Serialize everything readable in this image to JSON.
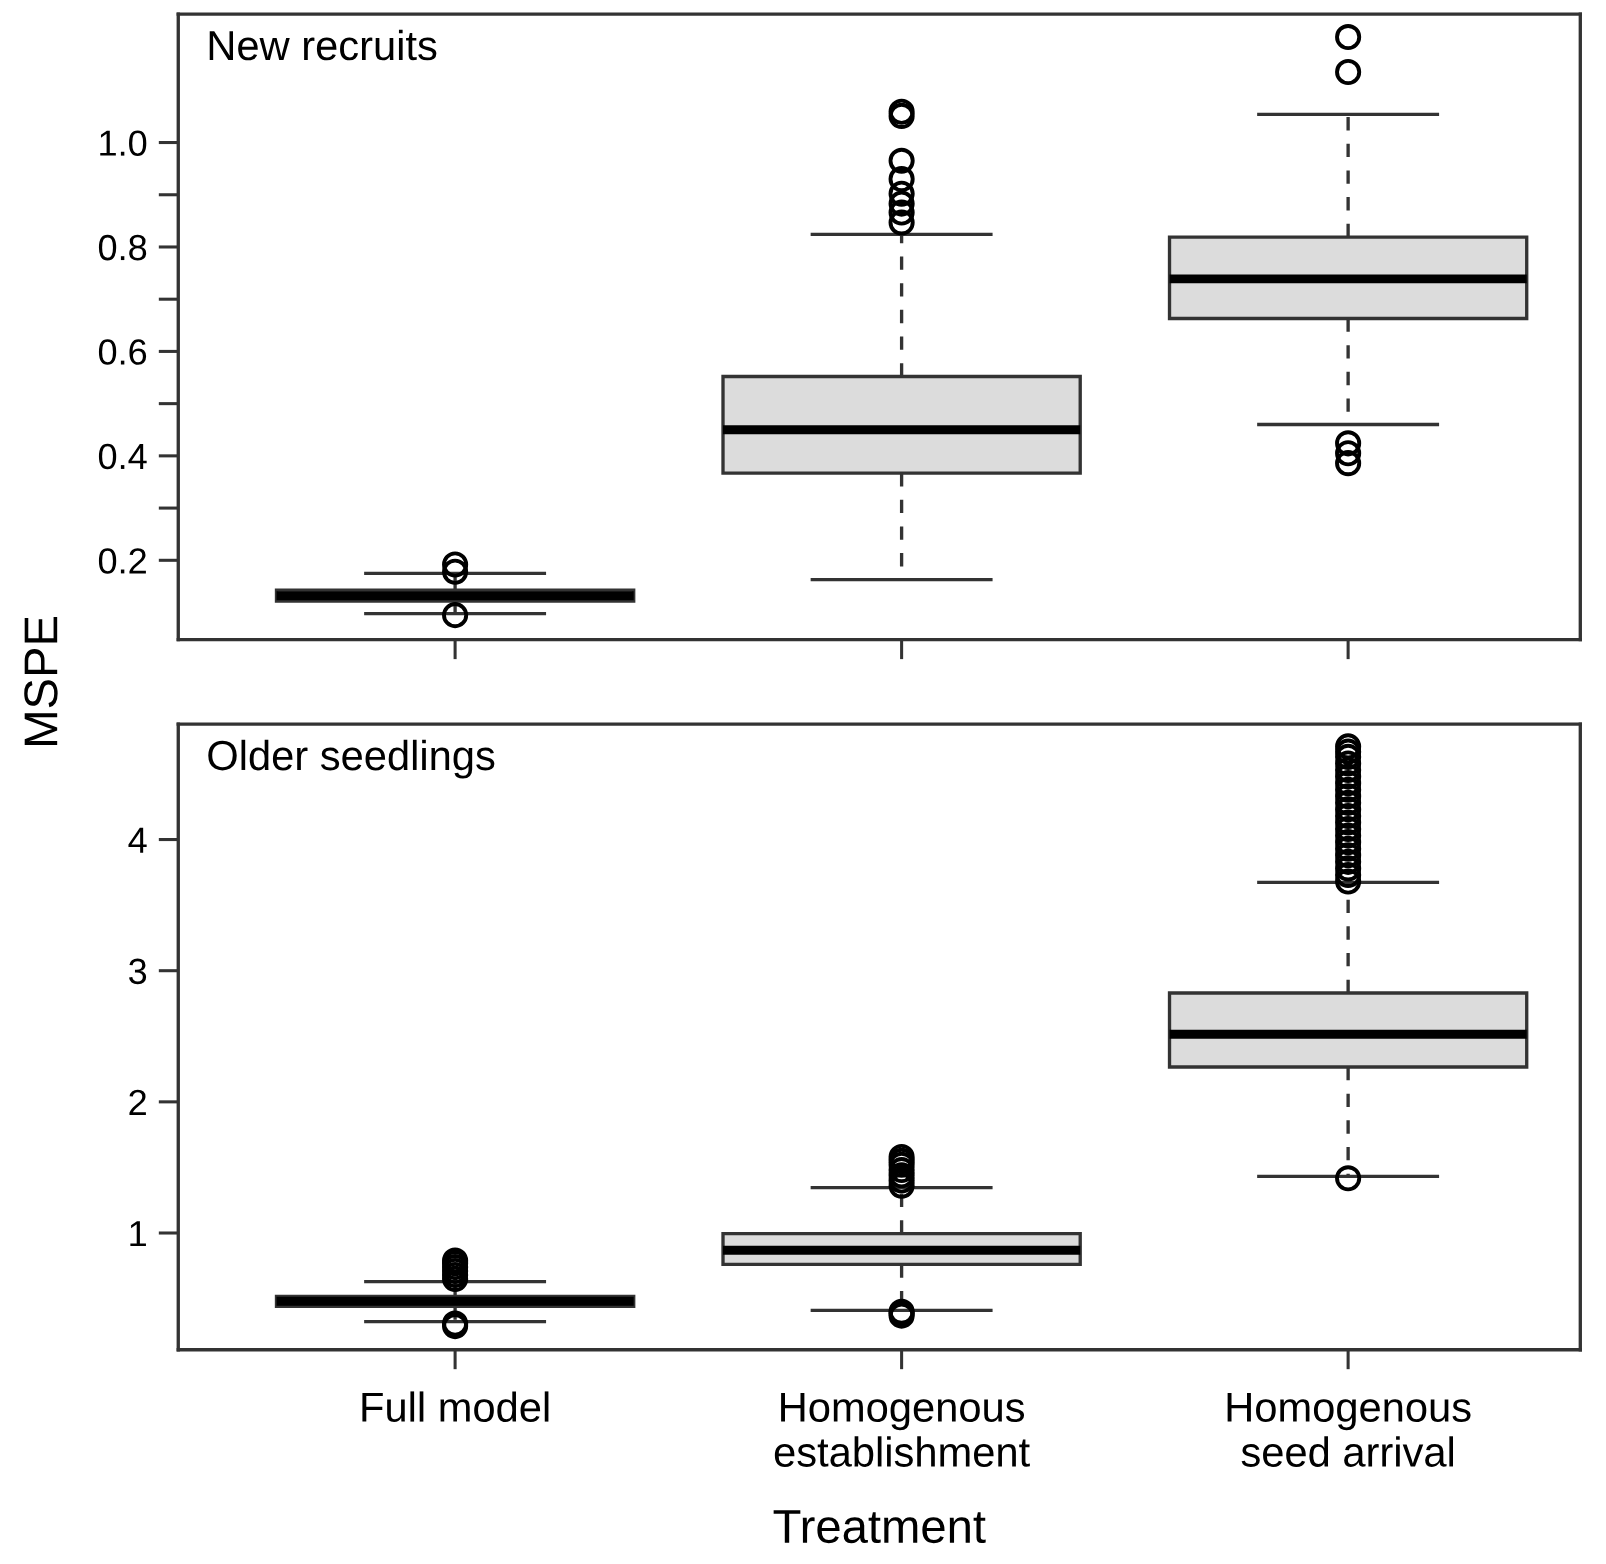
{
  "chart_data": [
    {
      "type": "box",
      "title": "New recruits",
      "ylabel": "MSPE",
      "categories": [
        null,
        null,
        null
      ],
      "tick_labels": "y",
      "ylim": [
        0.048,
        1.246
      ],
      "yticks": [
        0.2,
        {
          "value": 0.3,
          "label": null
        },
        0.4,
        {
          "value": 0.5,
          "label": null
        },
        0.6,
        {
          "value": 0.7,
          "label": null
        },
        0.8,
        {
          "value": 0.9,
          "label": null
        },
        {
          "value": 1.0,
          "label": "1.0"
        }
      ],
      "series": [
        {
          "color": "#dcdcdc",
          "boxes": [
            {
              "low": 0.098,
              "q1": 0.122,
              "median": 0.132,
              "q3": 0.143,
              "high": 0.175,
              "outliers": [
                0.192,
                0.178,
                0.095
              ]
            },
            {
              "low": 0.163,
              "q1": 0.367,
              "median": 0.45,
              "q3": 0.552,
              "high": 0.824,
              "outliers": [
                1.059,
                1.051,
                0.965,
                0.93,
                0.902,
                0.883,
                0.866,
                0.847
              ]
            },
            {
              "low": 0.46,
              "q1": 0.663,
              "median": 0.739,
              "q3": 0.819,
              "high": 1.054,
              "outliers": [
                1.202,
                1.135,
                0.424,
                0.405,
                0.386
              ]
            }
          ]
        }
      ]
    },
    {
      "type": "box",
      "title": "Older seedlings",
      "xlabel": "Treatment",
      "categories": [
        "Full model",
        "Homogenous\nestablishment",
        "Homogenous\nseed arrival"
      ],
      "ylim": [
        0.11,
        4.88
      ],
      "yticks": [
        1,
        2,
        3,
        4
      ],
      "series": [
        {
          "color": "#dcdcdc",
          "boxes": [
            {
              "low": 0.324,
              "q1": 0.441,
              "median": 0.48,
              "q3": 0.517,
              "high": 0.629,
              "outliers": [
                0.65,
                0.68,
                0.71,
                0.74,
                0.77,
                0.79,
                0.29,
                0.31
              ]
            },
            {
              "low": 0.41,
              "q1": 0.761,
              "median": 0.868,
              "q3": 0.995,
              "high": 1.346,
              "outliers": [
                1.36,
                1.4,
                1.44,
                1.48,
                1.52,
                1.55,
                1.58,
                0.37,
                0.39,
                0.4
              ]
            },
            {
              "low": 1.432,
              "q1": 2.266,
              "median": 2.515,
              "q3": 2.83,
              "high": 3.674,
              "outliers": [
                3.68,
                3.73,
                3.78,
                3.83,
                3.88,
                3.93,
                3.98,
                4.03,
                4.08,
                4.13,
                4.18,
                4.23,
                4.28,
                4.33,
                4.38,
                4.43,
                4.48,
                4.53,
                4.58,
                4.63,
                4.67,
                4.71,
                1.417
              ]
            }
          ]
        }
      ]
    }
  ]
}
